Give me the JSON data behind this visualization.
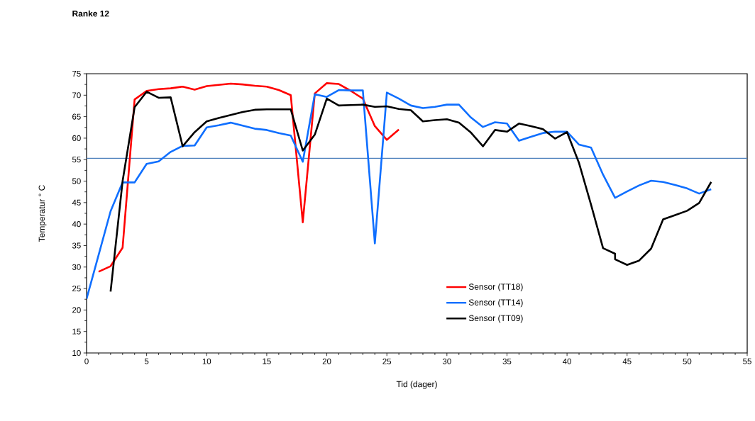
{
  "chart_data": {
    "type": "line",
    "title": "Ranke 12",
    "xlabel": "Tid (dager)",
    "ylabel": "Temperatur  ° C",
    "xlim": [
      0,
      55
    ],
    "xticks": [
      0,
      5,
      10,
      15,
      20,
      25,
      30,
      35,
      40,
      45,
      50,
      55
    ],
    "ylim": [
      10,
      75
    ],
    "yticks": [
      10,
      15,
      20,
      25,
      30,
      35,
      40,
      45,
      50,
      55,
      60,
      65,
      70,
      75
    ],
    "grid": false,
    "legend": "bottom",
    "marker": "none",
    "line_style": "solid",
    "ref_lines": [
      {
        "axis": "y",
        "value": 55.3,
        "color": "#4f81bd"
      }
    ],
    "series": [
      {
        "name": "Sensor (TT18)",
        "color": "#ff0000",
        "x": [
          1,
          2,
          3,
          4,
          5,
          6,
          7,
          8,
          9,
          10,
          11,
          12,
          13,
          14,
          15,
          16,
          17,
          18,
          19,
          20,
          21,
          22,
          23,
          24,
          25,
          26
        ],
        "values": [
          28.9,
          30.2,
          34.5,
          69,
          71,
          71.4,
          71.6,
          72,
          71.3,
          72.1,
          72.4,
          72.7,
          72.5,
          72.2,
          72,
          71.2,
          70,
          40.4,
          70.4,
          72.8,
          72.6,
          71,
          69.2,
          62.8,
          59.6,
          62
        ]
      },
      {
        "name": "Sensor (TT14)",
        "color": "#0f6fff",
        "x": [
          0,
          1,
          2,
          3,
          4,
          5,
          6,
          7,
          8,
          9,
          10,
          11,
          12,
          13,
          14,
          15,
          16,
          17,
          18,
          19,
          20,
          21,
          22,
          23,
          24,
          25,
          26,
          27,
          28,
          29,
          30,
          31,
          32,
          33,
          34,
          35,
          36,
          37,
          38,
          39,
          40,
          41,
          42,
          43,
          44,
          45,
          46,
          47,
          48,
          49,
          50,
          51,
          52
        ],
        "values": [
          22.6,
          32.8,
          43,
          49.7,
          49.7,
          54,
          54.6,
          56.8,
          58.2,
          58.3,
          62.5,
          63,
          63.6,
          62.9,
          62.2,
          61.9,
          61.2,
          60.6,
          54.5,
          70.2,
          69.6,
          71.2,
          71.1,
          71.1,
          35.5,
          70.6,
          69.2,
          67.6,
          67,
          67.3,
          67.8,
          67.8,
          64.8,
          62.6,
          63.7,
          63.4,
          59.4,
          60.3,
          61.2,
          61.5,
          61.5,
          58.5,
          57.8,
          51.5,
          46.1,
          47.6,
          49,
          50.1,
          49.8,
          49.1,
          48.3,
          47.1,
          48.1
        ]
      },
      {
        "name": "Sensor (TT09)",
        "color": "#000000",
        "x": [
          2,
          3,
          4,
          5,
          6,
          7,
          8,
          9,
          10,
          11,
          12,
          13,
          14,
          15,
          16,
          17,
          18,
          19,
          20,
          21,
          22,
          23,
          24,
          25,
          26,
          27,
          28,
          29,
          30,
          31,
          32,
          33,
          34,
          35,
          36,
          37,
          38,
          39,
          40,
          41,
          42,
          43,
          44,
          44,
          45,
          46,
          47,
          48,
          49,
          50,
          51,
          52
        ],
        "values": [
          24.3,
          50,
          67.2,
          70.8,
          69.4,
          69.5,
          58.1,
          61.4,
          63.9,
          64.7,
          65.4,
          66.1,
          66.6,
          66.7,
          66.7,
          66.7,
          57.1,
          60.8,
          69.2,
          67.6,
          67.7,
          67.8,
          67.3,
          67.4,
          66.8,
          66.5,
          63.9,
          64.2,
          64.4,
          63.6,
          61.3,
          58.1,
          61.9,
          61.5,
          63.4,
          62.8,
          62.1,
          59.9,
          61.4,
          54.2,
          44.5,
          34.4,
          33.1,
          31.8,
          30.5,
          31.5,
          34.3,
          41.1,
          42.1,
          43.1,
          44.9,
          49.8
        ]
      }
    ]
  }
}
